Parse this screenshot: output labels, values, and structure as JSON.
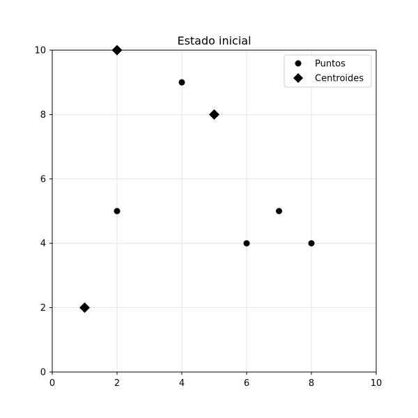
{
  "chart_data": {
    "type": "scatter",
    "title": "Estado inicial",
    "xlabel": "",
    "ylabel": "",
    "xlim": [
      0,
      10
    ],
    "ylim": [
      0,
      10
    ],
    "xticks": [
      "0",
      "2",
      "4",
      "6",
      "8",
      "10"
    ],
    "yticks": [
      "0",
      "2",
      "4",
      "6",
      "8",
      "10"
    ],
    "grid": true,
    "legend_position": "top-right",
    "series": [
      {
        "name": "Puntos",
        "marker": "circle",
        "color": "#000000",
        "points": [
          {
            "x": 2,
            "y": 5
          },
          {
            "x": 4,
            "y": 9
          },
          {
            "x": 6,
            "y": 4
          },
          {
            "x": 7,
            "y": 5
          },
          {
            "x": 8,
            "y": 4
          }
        ]
      },
      {
        "name": "Centroides",
        "marker": "diamond",
        "color": "#000000",
        "points": [
          {
            "x": 1,
            "y": 2
          },
          {
            "x": 2,
            "y": 10
          },
          {
            "x": 5,
            "y": 8
          }
        ]
      }
    ]
  }
}
